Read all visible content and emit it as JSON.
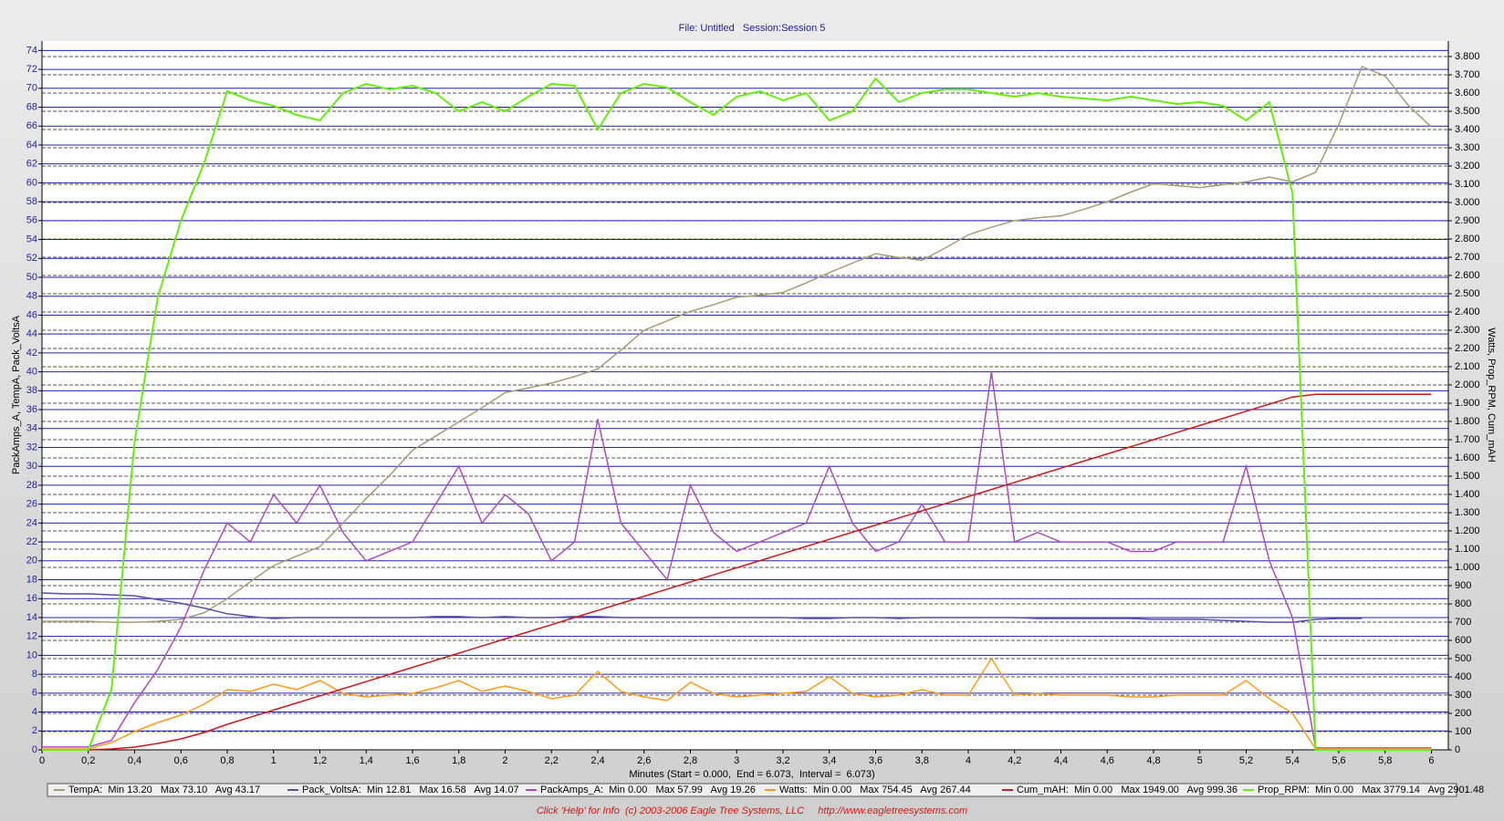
{
  "chart_data": {
    "type": "line",
    "title": "File: Untitled   Session:Session 5",
    "xlabel": "Minutes (Start = 0.000,  End = 6.073,  Interval =  6.073)",
    "ylabel": "PackAmps_A, TempA, Pack_VoltsA",
    "y2label": "Watts, Prop_RPM, Cum_mAH",
    "footer": "Click 'Help' for Info  (c) 2003-2006 Eagle Tree Systems, LLC     http://www.eagletreesystems.com",
    "xlim": [
      0,
      6.073
    ],
    "ylim": [
      0,
      75
    ],
    "y2lim": [
      0,
      3885
    ],
    "grid": true,
    "xticks": [
      0,
      {
        "value": 0.2,
        "label": "0,2"
      },
      {
        "value": 0.4,
        "label": "0,4"
      },
      {
        "value": 0.6,
        "label": "0,6"
      },
      {
        "value": 0.8,
        "label": "0,8"
      },
      1,
      {
        "value": 1.2,
        "label": "1,2"
      },
      {
        "value": 1.4,
        "label": "1,4"
      },
      {
        "value": 1.6,
        "label": "1,6"
      },
      {
        "value": 1.8,
        "label": "1,8"
      },
      2,
      {
        "value": 2.2,
        "label": "2,2"
      },
      {
        "value": 2.4,
        "label": "2,4"
      },
      {
        "value": 2.6,
        "label": "2,6"
      },
      {
        "value": 2.8,
        "label": "2,8"
      },
      3,
      {
        "value": 3.2,
        "label": "3,2"
      },
      {
        "value": 3.4,
        "label": "3,4"
      },
      {
        "value": 3.6,
        "label": "3,6"
      },
      {
        "value": 3.8,
        "label": "3,8"
      },
      4,
      {
        "value": 4.2,
        "label": "4,2"
      },
      {
        "value": 4.4,
        "label": "4,4"
      },
      {
        "value": 4.6,
        "label": "4,6"
      },
      {
        "value": 4.8,
        "label": "4,8"
      },
      5,
      {
        "value": 5.2,
        "label": "5,2"
      },
      {
        "value": 5.4,
        "label": "5,4"
      },
      {
        "value": 5.6,
        "label": "5,6"
      },
      {
        "value": 5.8,
        "label": "5,8"
      },
      6
    ],
    "yticks": [
      0,
      2,
      4,
      6,
      8,
      10,
      12,
      14,
      16,
      18,
      20,
      22,
      24,
      26,
      28,
      30,
      32,
      34,
      36,
      38,
      40,
      42,
      44,
      46,
      48,
      50,
      52,
      54,
      56,
      58,
      60,
      62,
      64,
      66,
      68,
      70,
      72,
      74
    ],
    "y2ticks": [
      0,
      100,
      200,
      300,
      400,
      500,
      600,
      700,
      800,
      900,
      {
        "value": 1000,
        "label": "1.000"
      },
      {
        "value": 1100,
        "label": "1.100"
      },
      {
        "value": 1200,
        "label": "1.200"
      },
      {
        "value": 1300,
        "label": "1.300"
      },
      {
        "value": 1400,
        "label": "1.400"
      },
      {
        "value": 1500,
        "label": "1.500"
      },
      {
        "value": 1600,
        "label": "1.600"
      },
      {
        "value": 1700,
        "label": "1.700"
      },
      {
        "value": 1800,
        "label": "1.800"
      },
      {
        "value": 1900,
        "label": "1.900"
      },
      {
        "value": 2000,
        "label": "2.000"
      },
      {
        "value": 2100,
        "label": "2.100"
      },
      {
        "value": 2200,
        "label": "2.200"
      },
      {
        "value": 2300,
        "label": "2.300"
      },
      {
        "value": 2400,
        "label": "2.400"
      },
      {
        "value": 2500,
        "label": "2.500"
      },
      {
        "value": 2600,
        "label": "2.600"
      },
      {
        "value": 2700,
        "label": "2.700"
      },
      {
        "value": 2800,
        "label": "2.800"
      },
      {
        "value": 2900,
        "label": "2.900"
      },
      {
        "value": 3000,
        "label": "3.000"
      },
      {
        "value": 3100,
        "label": "3.100"
      },
      {
        "value": 3200,
        "label": "3.200"
      },
      {
        "value": 3300,
        "label": "3.300"
      },
      {
        "value": 3400,
        "label": "3.400"
      },
      {
        "value": 3500,
        "label": "3.500"
      },
      {
        "value": 3600,
        "label": "3.600"
      },
      {
        "value": 3700,
        "label": "3.700"
      },
      {
        "value": 3800,
        "label": "3.800"
      }
    ],
    "x": [
      0,
      0.1,
      0.2,
      0.3,
      0.4,
      0.5,
      0.6,
      0.7,
      0.8,
      0.9,
      1.0,
      1.1,
      1.2,
      1.3,
      1.4,
      1.5,
      1.6,
      1.7,
      1.8,
      1.9,
      2.0,
      2.1,
      2.2,
      2.3,
      2.4,
      2.5,
      2.6,
      2.7,
      2.8,
      2.9,
      3.0,
      3.1,
      3.2,
      3.3,
      3.4,
      3.5,
      3.6,
      3.7,
      3.8,
      3.9,
      4.0,
      4.1,
      4.2,
      4.3,
      4.4,
      4.5,
      4.6,
      4.7,
      4.8,
      4.9,
      5.0,
      5.1,
      5.2,
      5.3,
      5.4,
      5.5,
      5.6,
      5.7,
      5.8,
      5.9,
      6.0
    ],
    "series": [
      {
        "name": "TempA",
        "stats": ":  Min 13.20   Max 73.10   Avg 43.17",
        "color": "#a89c78",
        "axis": "y",
        "values": [
          13.6,
          13.6,
          13.6,
          13.5,
          13.5,
          13.6,
          13.8,
          14.5,
          16,
          17.8,
          19.5,
          20.5,
          21.5,
          24,
          26.6,
          29,
          31.7,
          33.2,
          34.7,
          36.2,
          37.8,
          38.3,
          38.8,
          39.5,
          40.3,
          42.3,
          44.4,
          45.4,
          46.4,
          47.1,
          47.9,
          48.1,
          48.4,
          49.4,
          50.5,
          51.5,
          52.5,
          52.1,
          51.8,
          53.1,
          54.5,
          55.3,
          56,
          56.3,
          56.5,
          57.2,
          58,
          59,
          59.9,
          59.7,
          59.5,
          59.8,
          60.1,
          60.6,
          60.1,
          61.1,
          66.2,
          72.3,
          71.3,
          68.2,
          65.9
        ]
      },
      {
        "name": "Pack_VoltsA",
        "stats": ":  Min 12.81   Max 16.58   Avg 14.07",
        "color": "#5a4fa8",
        "axis": "y",
        "values": [
          16.6,
          16.5,
          16.5,
          16.4,
          16.3,
          15.9,
          15.5,
          15,
          14.4,
          14.1,
          13.9,
          14,
          14,
          14,
          14,
          14,
          14,
          14.1,
          14.1,
          14,
          14.1,
          14,
          14,
          14.1,
          14.1,
          14,
          14,
          14,
          14,
          14,
          14,
          14,
          14,
          13.9,
          13.9,
          14,
          14,
          13.9,
          14,
          14,
          14,
          14,
          14,
          13.9,
          13.9,
          13.9,
          13.9,
          13.9,
          13.8,
          13.8,
          13.8,
          13.7,
          13.6,
          13.5,
          13.5,
          13.8,
          13.9,
          13.9,
          null,
          null,
          null
        ]
      },
      {
        "name": "PackAmps_A",
        "stats": ":  Min 0.00   Max 57.99   Avg 19.26",
        "color": "#b04ac0",
        "axis": "y",
        "values": [
          0.3,
          0.3,
          0.3,
          1,
          5,
          8.5,
          13,
          19,
          24,
          22,
          27,
          24,
          28,
          23,
          20,
          21,
          22,
          26,
          30,
          24,
          27,
          25,
          20,
          22,
          35,
          24,
          21,
          18,
          28,
          23,
          21,
          22,
          23,
          24,
          30,
          24,
          21,
          22,
          26,
          22,
          22,
          40,
          22,
          23,
          22,
          22,
          22,
          21,
          21,
          22,
          22,
          22,
          30,
          20,
          14,
          0.2,
          0.2,
          0.2,
          0.2,
          0.2,
          0.2
        ]
      },
      {
        "name": "Watts",
        "stats": ":  Min 0.00   Max 754.45   Avg 267.44",
        "color": "#ff9a1a",
        "axis": "y2",
        "values": [
          5,
          5,
          5,
          40,
          100,
          150,
          190,
          250,
          330,
          320,
          360,
          330,
          380,
          310,
          290,
          300,
          310,
          340,
          380,
          320,
          350,
          320,
          280,
          300,
          430,
          320,
          290,
          270,
          370,
          310,
          290,
          300,
          310,
          320,
          400,
          310,
          290,
          300,
          330,
          300,
          300,
          500,
          300,
          310,
          300,
          300,
          300,
          290,
          290,
          300,
          300,
          300,
          380,
          280,
          200,
          5,
          5,
          5,
          5,
          5,
          5
        ]
      },
      {
        "name": "Cum_mAH",
        "stats": ":  Min 0.00   Max 1949.00   Avg 999.36",
        "color": "#d01818",
        "axis": "y2",
        "values": [
          0,
          0,
          0,
          5,
          15,
          35,
          60,
          95,
          140,
          179,
          218,
          257,
          296,
          335,
          374,
          413,
          452,
          491,
          530,
          569,
          608,
          647,
          686,
          725,
          764,
          803,
          842,
          881,
          920,
          959,
          998,
          1037,
          1076,
          1115,
          1154,
          1193,
          1232,
          1271,
          1310,
          1349,
          1388,
          1427,
          1466,
          1505,
          1544,
          1583,
          1622,
          1661,
          1700,
          1739,
          1778,
          1817,
          1856,
          1895,
          1934,
          1949,
          1949,
          1949,
          1949,
          1949,
          1949
        ]
      },
      {
        "name": "Prop_RPM",
        "stats": ":  Min 0.00   Max 3779.14   Avg 2901.48",
        "color": "#66ee10",
        "axis": "y2",
        "values": [
          0,
          0,
          0,
          330,
          1690,
          2480,
          2900,
          3215,
          3610,
          3560,
          3530,
          3480,
          3450,
          3600,
          3650,
          3620,
          3640,
          3600,
          3500,
          3550,
          3500,
          3580,
          3650,
          3640,
          3400,
          3600,
          3650,
          3630,
          3550,
          3480,
          3580,
          3610,
          3560,
          3600,
          3450,
          3500,
          3680,
          3550,
          3600,
          3620,
          3620,
          3600,
          3580,
          3600,
          3580,
          3570,
          3560,
          3580,
          3560,
          3540,
          3550,
          3530,
          3450,
          3550,
          3050,
          0,
          0,
          0,
          0,
          0,
          0
        ]
      }
    ]
  }
}
